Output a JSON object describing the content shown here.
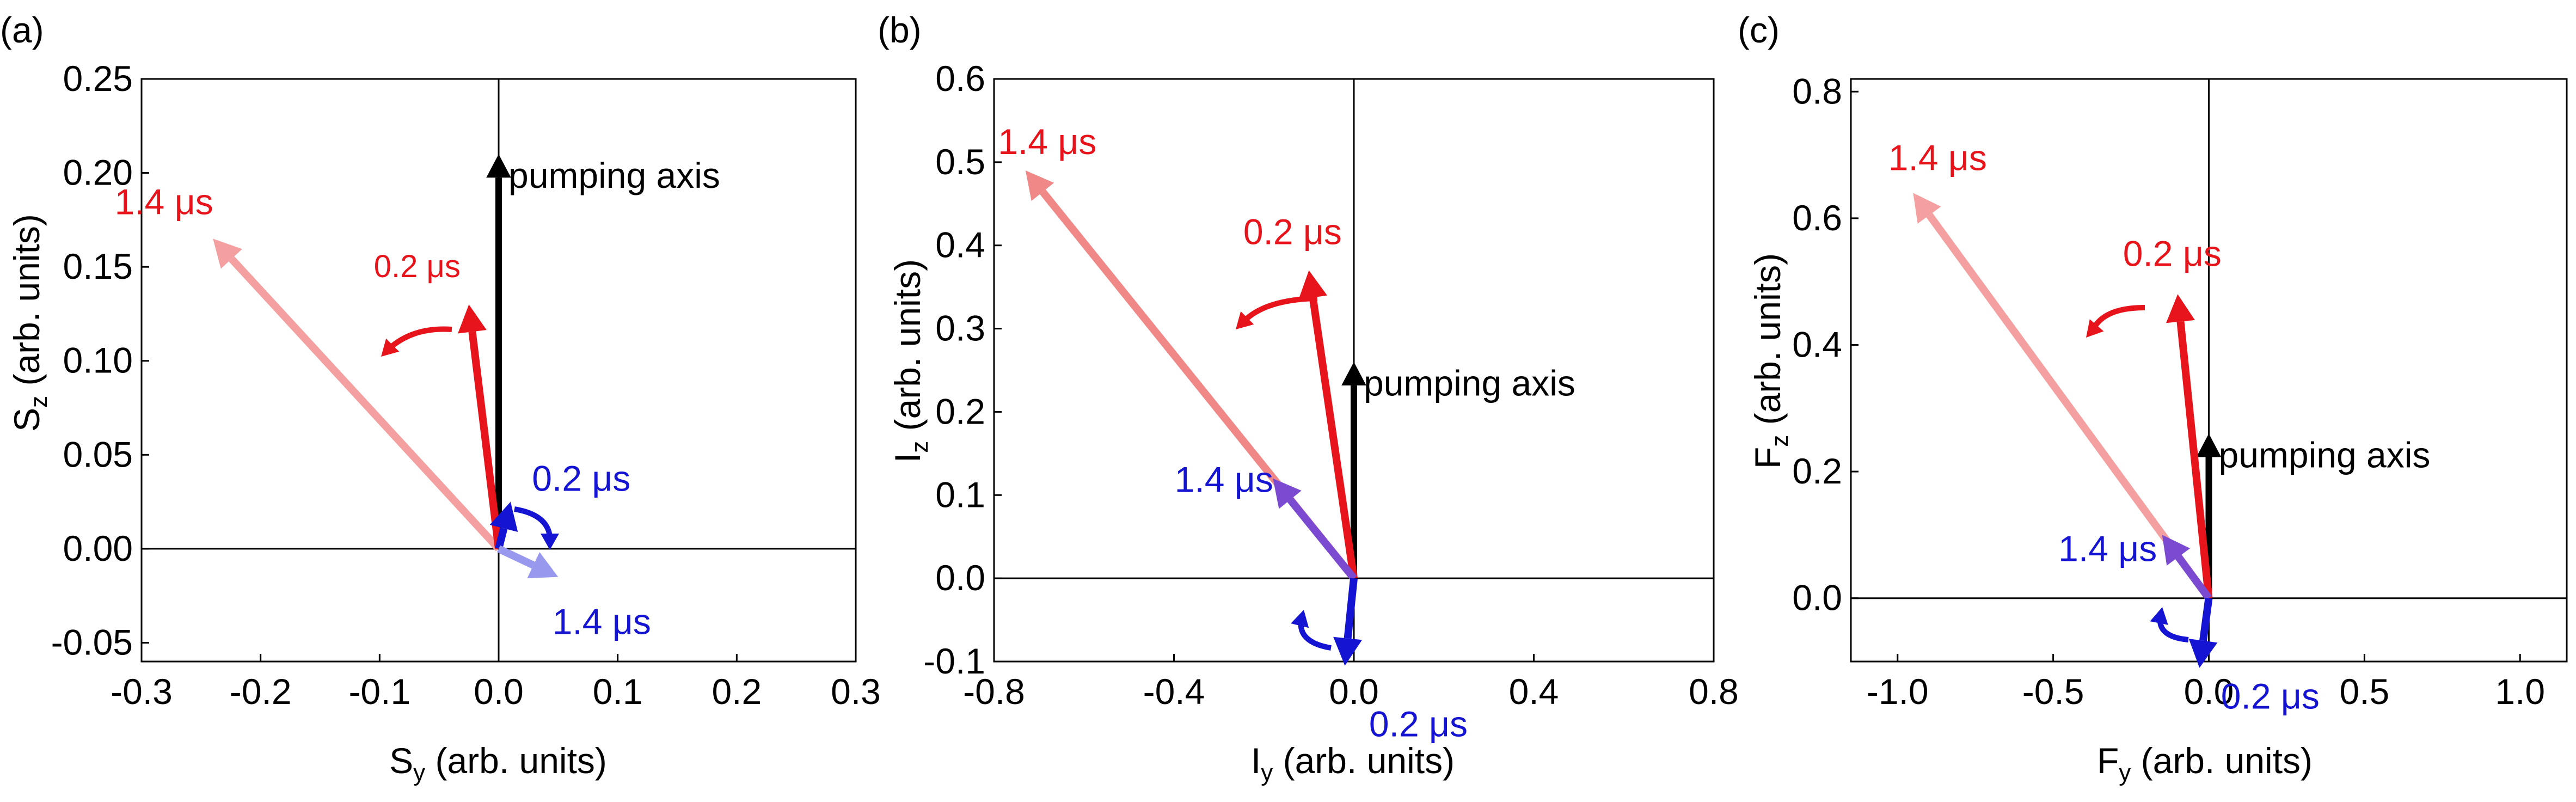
{
  "chart_data": [
    {
      "panel": "(a)",
      "type": "vector",
      "xlabel": "S",
      "xlabel_sub": "y",
      "xlabel_rest": " (arb. units)",
      "ylabel": "S",
      "ylabel_sub": "z",
      "ylabel_rest": " (arb. units)",
      "xlim": [
        -0.3,
        0.3
      ],
      "ylim": [
        -0.06,
        0.25
      ],
      "xticks": [
        -0.3,
        -0.2,
        -0.1,
        0.0,
        0.1,
        0.2,
        0.3
      ],
      "xtick_labels": [
        "-0.3",
        "-0.2",
        "-0.1",
        "0.0",
        "0.1",
        "0.2",
        "0.3"
      ],
      "yticks": [
        -0.05,
        0.0,
        0.05,
        0.1,
        0.15,
        0.2,
        0.25
      ],
      "ytick_labels": [
        "-0.05",
        "0.00",
        "0.05",
        "0.10",
        "0.15",
        "0.20",
        "0.25"
      ],
      "pumping_axis": {
        "label": "pumping axis",
        "x": 0.0,
        "y": 0.21
      },
      "vectors": [
        {
          "name": "red 1.4",
          "label": "1.4 μs",
          "color": "#f4a0a0",
          "x": -0.24,
          "y": 0.165
        },
        {
          "name": "red 0.2",
          "label": "0.2 μs",
          "color": "#e8141c",
          "x": -0.025,
          "y": 0.13
        },
        {
          "name": "blue 0.2",
          "label": "0.2 μs",
          "color": "#1414d2",
          "x": 0.01,
          "y": 0.025
        },
        {
          "name": "blue 1.4",
          "label": "1.4 μs",
          "color": "#9898ee",
          "x": 0.05,
          "y": -0.015
        }
      ]
    },
    {
      "panel": "(b)",
      "type": "vector",
      "xlabel": "I",
      "xlabel_sub": "y",
      "xlabel_rest": " (arb. units)",
      "ylabel": "I",
      "ylabel_sub": "z",
      "ylabel_rest": " (arb. units)",
      "xlim": [
        -0.8,
        0.8
      ],
      "ylim": [
        -0.1,
        0.6
      ],
      "xticks": [
        -0.8,
        -0.4,
        0.0,
        0.4,
        0.8
      ],
      "xtick_labels": [
        "-0.8",
        "-0.4",
        "0.0",
        "0.4",
        "0.8"
      ],
      "yticks": [
        -0.1,
        0.0,
        0.1,
        0.2,
        0.3,
        0.4,
        0.5,
        0.6
      ],
      "ytick_labels": [
        "-0.1",
        "0.0",
        "0.1",
        "0.2",
        "0.3",
        "0.4",
        "0.5",
        "0.6"
      ],
      "pumping_axis": {
        "label": "pumping axis",
        "x": 0.0,
        "y": 0.26
      },
      "vectors": [
        {
          "name": "red 1.4",
          "label": "1.4 μs",
          "color": "#f08888",
          "x": -0.73,
          "y": 0.49
        },
        {
          "name": "red 0.2",
          "label": "0.2 μs",
          "color": "#e8141c",
          "x": -0.1,
          "y": 0.37
        },
        {
          "name": "blue 1.4",
          "label": "1.4 μs",
          "color": "#7a4ad0",
          "x": -0.18,
          "y": 0.12
        },
        {
          "name": "blue 0.2",
          "label": "0.2 μs",
          "color": "#1414d2",
          "x": -0.02,
          "y": -0.105
        }
      ]
    },
    {
      "panel": "(c)",
      "type": "vector",
      "xlabel": "F",
      "xlabel_sub": "y",
      "xlabel_rest": " (arb. units)",
      "ylabel": "F",
      "ylabel_sub": "z",
      "ylabel_rest": " (arb. units)",
      "xlim": [
        -1.15,
        1.15
      ],
      "ylim": [
        -0.1,
        0.82
      ],
      "xticks": [
        -1.0,
        -0.5,
        0.0,
        0.5,
        1.0
      ],
      "xtick_labels": [
        "-1.0",
        "-0.5",
        "0.0",
        "0.5",
        "1.0"
      ],
      "yticks": [
        0.0,
        0.2,
        0.4,
        0.6,
        0.8
      ],
      "ytick_labels": [
        "0.0",
        "0.2",
        "0.4",
        "0.6",
        "0.8"
      ],
      "pumping_axis": {
        "label": "pumping axis",
        "x": 0.0,
        "y": 0.26
      },
      "vectors": [
        {
          "name": "red 1.4",
          "label": "1.4 μs",
          "color": "#f4a0a0",
          "x": -0.95,
          "y": 0.64
        },
        {
          "name": "red 0.2",
          "label": "0.2 μs",
          "color": "#e8141c",
          "x": -0.1,
          "y": 0.48
        },
        {
          "name": "blue 1.4",
          "label": "1.4 μs",
          "color": "#7a4ad0",
          "x": -0.15,
          "y": 0.1
        },
        {
          "name": "blue 0.2",
          "label": "0.2 μs",
          "color": "#1414d2",
          "x": -0.03,
          "y": -0.11
        }
      ]
    }
  ]
}
